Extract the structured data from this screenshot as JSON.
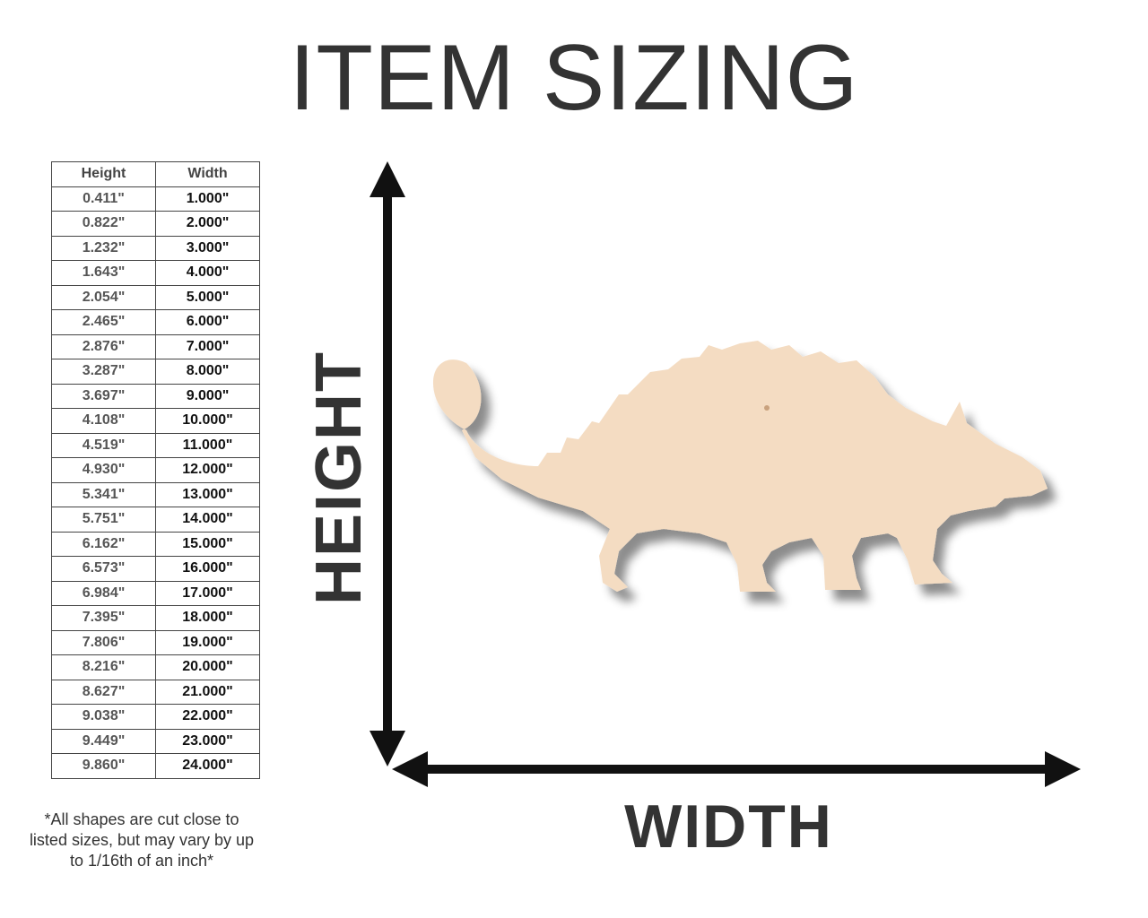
{
  "title": "ITEM SIZING",
  "table": {
    "headers": [
      "Height",
      "Width"
    ],
    "rows": [
      [
        "0.411\"",
        "1.000\""
      ],
      [
        "0.822\"",
        "2.000\""
      ],
      [
        "1.232\"",
        "3.000\""
      ],
      [
        "1.643\"",
        "4.000\""
      ],
      [
        "2.054\"",
        "5.000\""
      ],
      [
        "2.465\"",
        "6.000\""
      ],
      [
        "2.876\"",
        "7.000\""
      ],
      [
        "3.287\"",
        "8.000\""
      ],
      [
        "3.697\"",
        "9.000\""
      ],
      [
        "4.108\"",
        "10.000\""
      ],
      [
        "4.519\"",
        "11.000\""
      ],
      [
        "4.930\"",
        "12.000\""
      ],
      [
        "5.341\"",
        "13.000\""
      ],
      [
        "5.751\"",
        "14.000\""
      ],
      [
        "6.162\"",
        "15.000\""
      ],
      [
        "6.573\"",
        "16.000\""
      ],
      [
        "6.984\"",
        "17.000\""
      ],
      [
        "7.395\"",
        "18.000\""
      ],
      [
        "7.806\"",
        "19.000\""
      ],
      [
        "8.216\"",
        "20.000\""
      ],
      [
        "8.627\"",
        "21.000\""
      ],
      [
        "9.038\"",
        "22.000\""
      ],
      [
        "9.449\"",
        "23.000\""
      ],
      [
        "9.860\"",
        "24.000\""
      ]
    ]
  },
  "note": "*All shapes are cut close to listed sizes, but may vary by up to 1/16th of an inch*",
  "axes": {
    "height_label": "HEIGHT",
    "width_label": "WIDTH"
  },
  "colors": {
    "wood": "#f4dcc2",
    "text": "#333333",
    "arrow": "#111111"
  },
  "illustration": "ankylosaurus-silhouette"
}
